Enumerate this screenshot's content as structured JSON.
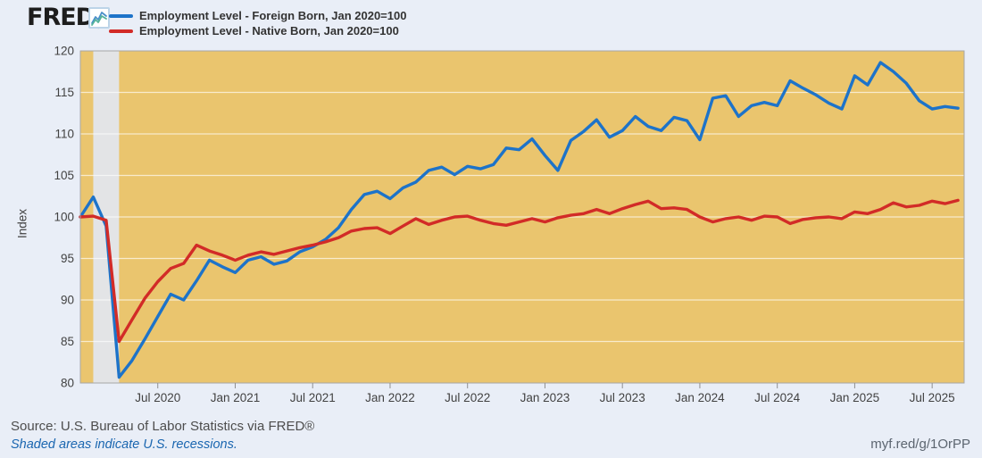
{
  "header": {
    "logo_text": "FRED",
    "registered_mark": "®"
  },
  "legend": [
    {
      "label": "Employment Level - Foreign Born, Jan 2020=100",
      "color": "#1d73c9"
    },
    {
      "label": "Employment Level - Native Born, Jan 2020=100",
      "color": "#d22b27"
    }
  ],
  "chart_data": {
    "type": "line",
    "title": "",
    "ylabel": "Index",
    "xlabel": "",
    "ylim": [
      80,
      120
    ],
    "yticks": [
      80,
      85,
      90,
      95,
      100,
      105,
      110,
      115,
      120
    ],
    "grid": true,
    "legend_position": "top-left",
    "plot_bg_color": "#eac56e",
    "recession_band": {
      "from": "Feb 2020",
      "to": "Apr 2020",
      "color": "#e3e4e6"
    },
    "xtick_labels": [
      "Jul 2020",
      "Jan 2021",
      "Jul 2021",
      "Jan 2022",
      "Jul 2022",
      "Jan 2023",
      "Jul 2023",
      "Jan 2024",
      "Jul 2024",
      "Jan 2025",
      "Jul 2025"
    ],
    "xtick_month_indices": [
      6,
      12,
      18,
      24,
      30,
      36,
      42,
      48,
      54,
      60,
      66
    ],
    "categories": [
      "Jan 2020",
      "Feb 2020",
      "Mar 2020",
      "Apr 2020",
      "May 2020",
      "Jun 2020",
      "Jul 2020",
      "Aug 2020",
      "Sep 2020",
      "Oct 2020",
      "Nov 2020",
      "Dec 2020",
      "Jan 2021",
      "Feb 2021",
      "Mar 2021",
      "Apr 2021",
      "May 2021",
      "Jun 2021",
      "Jul 2021",
      "Aug 2021",
      "Sep 2021",
      "Oct 2021",
      "Nov 2021",
      "Dec 2021",
      "Jan 2022",
      "Feb 2022",
      "Mar 2022",
      "Apr 2022",
      "May 2022",
      "Jun 2022",
      "Jul 2022",
      "Aug 2022",
      "Sep 2022",
      "Oct 2022",
      "Nov 2022",
      "Dec 2022",
      "Jan 2023",
      "Feb 2023",
      "Mar 2023",
      "Apr 2023",
      "May 2023",
      "Jun 2023",
      "Jul 2023",
      "Aug 2023",
      "Sep 2023",
      "Oct 2023",
      "Nov 2023",
      "Dec 2023",
      "Jan 2024",
      "Feb 2024",
      "Mar 2024",
      "Apr 2024",
      "May 2024",
      "Jun 2024",
      "Jul 2024",
      "Aug 2024",
      "Sep 2024",
      "Oct 2024",
      "Nov 2024",
      "Dec 2024",
      "Jan 2025",
      "Feb 2025",
      "Mar 2025",
      "Apr 2025",
      "May 2025",
      "Jun 2025",
      "Jul 2025",
      "Aug 2025",
      "Sep 2025"
    ],
    "series": [
      {
        "name": "Employment Level - Foreign Born, Jan 2020=100",
        "color": "#1d73c9",
        "values": [
          100.0,
          102.4,
          98.9,
          80.7,
          82.7,
          85.3,
          88.0,
          90.7,
          90.0,
          92.3,
          94.8,
          94.0,
          93.3,
          94.8,
          95.2,
          94.3,
          94.7,
          95.8,
          96.4,
          97.3,
          98.7,
          100.9,
          102.7,
          103.1,
          102.2,
          103.5,
          104.2,
          105.6,
          106.0,
          105.1,
          106.1,
          105.8,
          106.3,
          108.3,
          108.1,
          109.4,
          107.4,
          105.6,
          109.2,
          110.3,
          111.7,
          109.6,
          110.4,
          112.1,
          110.9,
          110.4,
          112.0,
          111.6,
          109.3,
          114.3,
          114.6,
          112.1,
          113.4,
          113.8,
          113.4,
          116.4,
          115.5,
          114.7,
          113.7,
          113.0,
          117.0,
          115.9,
          118.6,
          117.5,
          116.1,
          114.0,
          113.0,
          113.3,
          113.1
        ]
      },
      {
        "name": "Employment Level - Native Born, Jan 2020=100",
        "color": "#d22b27",
        "values": [
          100.0,
          100.1,
          99.6,
          85.0,
          87.6,
          90.2,
          92.2,
          93.8,
          94.4,
          96.6,
          95.9,
          95.4,
          94.8,
          95.4,
          95.8,
          95.5,
          95.9,
          96.3,
          96.6,
          97.0,
          97.5,
          98.3,
          98.6,
          98.7,
          98.0,
          98.9,
          99.8,
          99.1,
          99.6,
          100.0,
          100.1,
          99.6,
          99.2,
          99.0,
          99.4,
          99.8,
          99.4,
          99.9,
          100.2,
          100.4,
          100.9,
          100.4,
          101.0,
          101.5,
          101.9,
          101.0,
          101.1,
          100.9,
          100.0,
          99.4,
          99.8,
          100.0,
          99.6,
          100.1,
          100.0,
          99.2,
          99.7,
          99.9,
          100.0,
          99.8,
          100.6,
          100.4,
          100.9,
          101.7,
          101.2,
          101.4,
          101.9,
          101.6,
          102.0
        ]
      }
    ]
  },
  "footer": {
    "source": "Source: U.S. Bureau of Labor Statistics via FRED®",
    "note": "Shaded areas indicate U.S. recessions.",
    "link": "myf.red/g/1OrPP"
  }
}
